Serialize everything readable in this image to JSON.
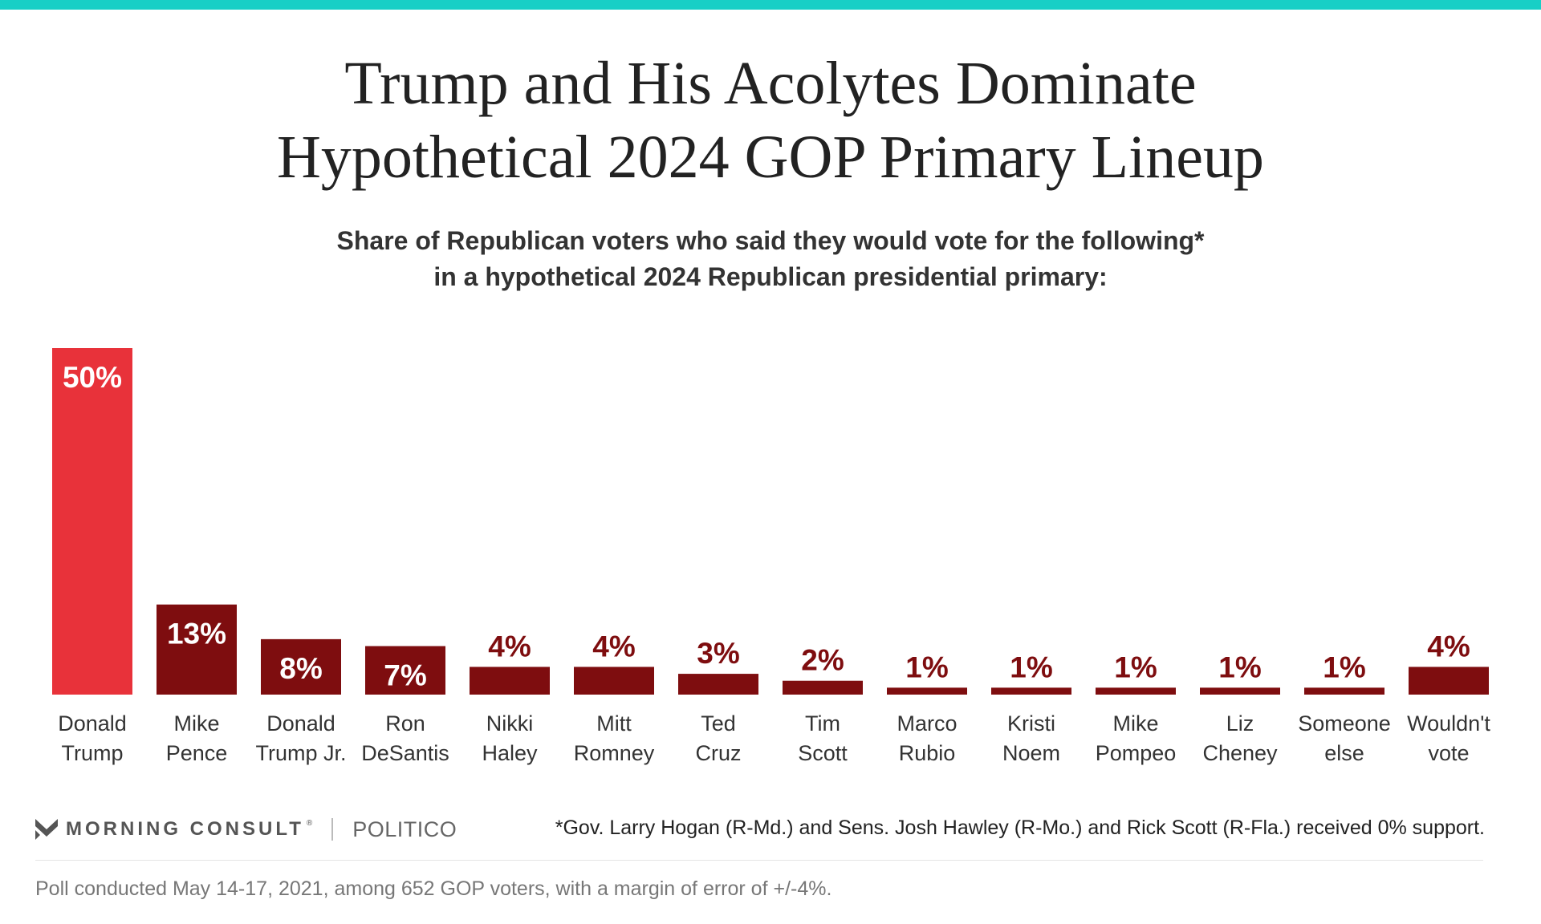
{
  "header": {
    "title_lines": [
      "Trump and His Acolytes Dominate",
      "Hypothetical 2024 GOP Primary Lineup"
    ],
    "subtitle_lines": [
      "Share of Republican voters who said they would vote for the following*",
      "in a hypothetical 2024 Republican presidential primary:"
    ]
  },
  "chart_data": {
    "type": "bar",
    "categories": [
      [
        "Donald",
        "Trump"
      ],
      [
        "Mike",
        "Pence"
      ],
      [
        "Donald",
        "Trump Jr."
      ],
      [
        "Ron",
        "DeSantis"
      ],
      [
        "Nikki",
        "Haley"
      ],
      [
        "Mitt",
        "Romney"
      ],
      [
        "Ted",
        "Cruz"
      ],
      [
        "Tim",
        "Scott"
      ],
      [
        "Marco",
        "Rubio"
      ],
      [
        "Kristi",
        "Noem"
      ],
      [
        "Mike",
        "Pompeo"
      ],
      [
        "Liz",
        "Cheney"
      ],
      [
        "Someone",
        "else"
      ],
      [
        "Wouldn't",
        "vote"
      ]
    ],
    "values": [
      50,
      13,
      8,
      7,
      4,
      4,
      3,
      2,
      1,
      1,
      1,
      1,
      1,
      4
    ],
    "labels": [
      "50%",
      "13%",
      "8%",
      "7%",
      "4%",
      "4%",
      "3%",
      "2%",
      "1%",
      "1%",
      "1%",
      "1%",
      "1%",
      "4%"
    ],
    "highlight_index": 0,
    "colors": {
      "highlight": "#e8323a",
      "default": "#7e0d0f",
      "label_on_bar": "#ffffff",
      "label_above_bar": "#7e0d0f"
    },
    "ylim": [
      0,
      50
    ]
  },
  "footer": {
    "brand": "MORNING CONSULT",
    "brand_mark": "®",
    "partner": "POLITICO",
    "footnote": "*Gov. Larry Hogan (R-Md.) and Sens. Josh Hawley (R-Mo.) and Rick Scott (R-Fla.) received 0% support.",
    "source": "Poll conducted May 14-17, 2021, among 652 GOP voters, with a margin of error of +/-4%."
  }
}
